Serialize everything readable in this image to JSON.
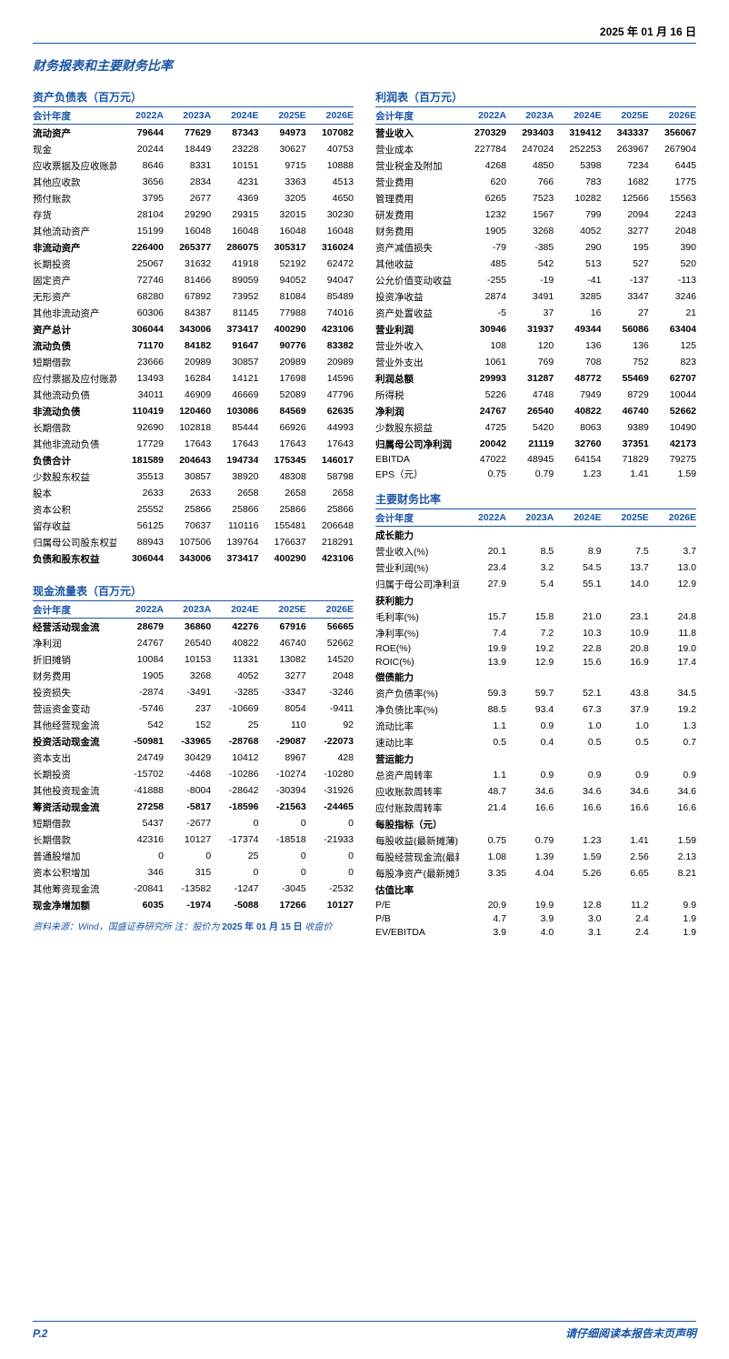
{
  "date_parts": [
    "2025",
    "年",
    "01",
    "月",
    "16",
    "日"
  ],
  "main_title": "财务报表和主要财务比率",
  "years": [
    "2022A",
    "2023A",
    "2024E",
    "2025E",
    "2026E"
  ],
  "year_label": "会计年度",
  "tables": {
    "balance": {
      "title": "资产负债表（百万元）",
      "rows": [
        {
          "b": 1,
          "l": "流动资产",
          "v": [
            "79644",
            "77629",
            "87343",
            "94973",
            "107082"
          ]
        },
        {
          "l": "现金",
          "v": [
            "20244",
            "18449",
            "23228",
            "30627",
            "40753"
          ]
        },
        {
          "l": "应收票据及应收账款",
          "v": [
            "8646",
            "8331",
            "10151",
            "9715",
            "10888"
          ]
        },
        {
          "l": "其他应收款",
          "v": [
            "3656",
            "2834",
            "4231",
            "3363",
            "4513"
          ]
        },
        {
          "l": "预付账款",
          "v": [
            "3795",
            "2677",
            "4369",
            "3205",
            "4650"
          ]
        },
        {
          "l": "存货",
          "v": [
            "28104",
            "29290",
            "29315",
            "32015",
            "30230"
          ]
        },
        {
          "l": "其他流动资产",
          "v": [
            "15199",
            "16048",
            "16048",
            "16048",
            "16048"
          ]
        },
        {
          "b": 1,
          "l": "非流动资产",
          "v": [
            "226400",
            "265377",
            "286075",
            "305317",
            "316024"
          ]
        },
        {
          "l": "长期投资",
          "v": [
            "25067",
            "31632",
            "41918",
            "52192",
            "62472"
          ]
        },
        {
          "l": "固定资产",
          "v": [
            "72746",
            "81466",
            "89059",
            "94052",
            "94047"
          ]
        },
        {
          "l": "无形资产",
          "v": [
            "68280",
            "67892",
            "73952",
            "81084",
            "85489"
          ]
        },
        {
          "l": "其他非流动资产",
          "v": [
            "60306",
            "84387",
            "81145",
            "77988",
            "74016"
          ]
        },
        {
          "b": 1,
          "l": "资产总计",
          "v": [
            "306044",
            "343006",
            "373417",
            "400290",
            "423106"
          ]
        },
        {
          "b": 1,
          "l": "流动负债",
          "v": [
            "71170",
            "84182",
            "91647",
            "90776",
            "83382"
          ]
        },
        {
          "l": "短期借款",
          "v": [
            "23666",
            "20989",
            "30857",
            "20989",
            "20989"
          ]
        },
        {
          "l": "应付票据及应付账款",
          "v": [
            "13493",
            "16284",
            "14121",
            "17698",
            "14596"
          ]
        },
        {
          "l": "其他流动负债",
          "v": [
            "34011",
            "46909",
            "46669",
            "52089",
            "47796"
          ]
        },
        {
          "b": 1,
          "l": "非流动负债",
          "v": [
            "110419",
            "120460",
            "103086",
            "84569",
            "62635"
          ]
        },
        {
          "l": "长期借款",
          "v": [
            "92690",
            "102818",
            "85444",
            "66926",
            "44993"
          ]
        },
        {
          "l": "其他非流动负债",
          "v": [
            "17729",
            "17643",
            "17643",
            "17643",
            "17643"
          ]
        },
        {
          "b": 1,
          "l": "负债合计",
          "v": [
            "181589",
            "204643",
            "194734",
            "175345",
            "146017"
          ]
        },
        {
          "l": "少数股东权益",
          "v": [
            "35513",
            "30857",
            "38920",
            "48308",
            "58798"
          ]
        },
        {
          "l": "股本",
          "v": [
            "2633",
            "2633",
            "2658",
            "2658",
            "2658"
          ]
        },
        {
          "l": "资本公积",
          "v": [
            "25552",
            "25866",
            "25866",
            "25866",
            "25866"
          ]
        },
        {
          "l": "留存收益",
          "v": [
            "56125",
            "70637",
            "110116",
            "155481",
            "206648"
          ]
        },
        {
          "l": "归属母公司股东权益",
          "v": [
            "88943",
            "107506",
            "139764",
            "176637",
            "218291"
          ]
        },
        {
          "b": 1,
          "l": "负债和股东权益",
          "v": [
            "306044",
            "343006",
            "373417",
            "400290",
            "423106"
          ]
        }
      ]
    },
    "cash": {
      "title": "现金流量表（百万元）",
      "rows": [
        {
          "b": 1,
          "l": "经营活动现金流",
          "v": [
            "28679",
            "36860",
            "42276",
            "67916",
            "56665"
          ]
        },
        {
          "l": "净利润",
          "v": [
            "24767",
            "26540",
            "40822",
            "46740",
            "52662"
          ]
        },
        {
          "l": "折旧摊销",
          "v": [
            "10084",
            "10153",
            "11331",
            "13082",
            "14520"
          ]
        },
        {
          "l": "财务费用",
          "v": [
            "1905",
            "3268",
            "4052",
            "3277",
            "2048"
          ]
        },
        {
          "l": "投资损失",
          "v": [
            "-2874",
            "-3491",
            "-3285",
            "-3347",
            "-3246"
          ]
        },
        {
          "l": "营运资金变动",
          "v": [
            "-5746",
            "237",
            "-10669",
            "8054",
            "-9411"
          ]
        },
        {
          "l": "其他经营现金流",
          "v": [
            "542",
            "152",
            "25",
            "110",
            "92"
          ]
        },
        {
          "b": 1,
          "l": "投资活动现金流",
          "v": [
            "-50981",
            "-33965",
            "-28768",
            "-29087",
            "-22073"
          ]
        },
        {
          "l": "资本支出",
          "v": [
            "24749",
            "30429",
            "10412",
            "8967",
            "428"
          ]
        },
        {
          "l": "长期投资",
          "v": [
            "-15702",
            "-4468",
            "-10286",
            "-10274",
            "-10280"
          ]
        },
        {
          "l": "其他投资现金流",
          "v": [
            "-41888",
            "-8004",
            "-28642",
            "-30394",
            "-31926"
          ]
        },
        {
          "b": 1,
          "l": "筹资活动现金流",
          "v": [
            "27258",
            "-5817",
            "-18596",
            "-21563",
            "-24465"
          ]
        },
        {
          "l": "短期借款",
          "v": [
            "5437",
            "-2677",
            "0",
            "0",
            "0"
          ]
        },
        {
          "l": "长期借款",
          "v": [
            "42316",
            "10127",
            "-17374",
            "-18518",
            "-21933"
          ]
        },
        {
          "l": "普通股增加",
          "v": [
            "0",
            "0",
            "25",
            "0",
            "0"
          ]
        },
        {
          "l": "资本公积增加",
          "v": [
            "346",
            "315",
            "0",
            "0",
            "0"
          ]
        },
        {
          "l": "其他筹资现金流",
          "v": [
            "-20841",
            "-13582",
            "-1247",
            "-3045",
            "-2532"
          ]
        },
        {
          "b": 1,
          "l": "现金净增加额",
          "v": [
            "6035",
            "-1974",
            "-5088",
            "17266",
            "10127"
          ]
        }
      ]
    },
    "income": {
      "title": "利润表（百万元）",
      "rows": [
        {
          "b": 1,
          "l": "营业收入",
          "v": [
            "270329",
            "293403",
            "319412",
            "343337",
            "356067"
          ]
        },
        {
          "l": "营业成本",
          "v": [
            "227784",
            "247024",
            "252253",
            "263967",
            "267904"
          ]
        },
        {
          "l": "营业税金及附加",
          "v": [
            "4268",
            "4850",
            "5398",
            "7234",
            "6445"
          ]
        },
        {
          "l": "营业费用",
          "v": [
            "620",
            "766",
            "783",
            "1682",
            "1775"
          ]
        },
        {
          "l": "管理费用",
          "v": [
            "6265",
            "7523",
            "10282",
            "12566",
            "15563"
          ]
        },
        {
          "l": "研发费用",
          "v": [
            "1232",
            "1567",
            "799",
            "2094",
            "2243"
          ]
        },
        {
          "l": "财务费用",
          "v": [
            "1905",
            "3268",
            "4052",
            "3277",
            "2048"
          ]
        },
        {
          "l": "资产减值损失",
          "v": [
            "-79",
            "-385",
            "290",
            "195",
            "390"
          ]
        },
        {
          "l": "其他收益",
          "v": [
            "485",
            "542",
            "513",
            "527",
            "520"
          ]
        },
        {
          "l": "公允价值变动收益",
          "v": [
            "-255",
            "-19",
            "-41",
            "-137",
            "-113"
          ]
        },
        {
          "l": "投资净收益",
          "v": [
            "2874",
            "3491",
            "3285",
            "3347",
            "3246"
          ]
        },
        {
          "l": "资产处置收益",
          "v": [
            "-5",
            "37",
            "16",
            "27",
            "21"
          ]
        },
        {
          "b": 1,
          "l": "营业利润",
          "v": [
            "30946",
            "31937",
            "49344",
            "56086",
            "63404"
          ]
        },
        {
          "l": "营业外收入",
          "v": [
            "108",
            "120",
            "136",
            "136",
            "125"
          ]
        },
        {
          "l": "营业外支出",
          "v": [
            "1061",
            "769",
            "708",
            "752",
            "823"
          ]
        },
        {
          "b": 1,
          "l": "利润总额",
          "v": [
            "29993",
            "31287",
            "48772",
            "55469",
            "62707"
          ]
        },
        {
          "l": "所得税",
          "v": [
            "5226",
            "4748",
            "7949",
            "8729",
            "10044"
          ]
        },
        {
          "b": 1,
          "l": "净利润",
          "v": [
            "24767",
            "26540",
            "40822",
            "46740",
            "52662"
          ]
        },
        {
          "l": "少数股东损益",
          "v": [
            "4725",
            "5420",
            "8063",
            "9389",
            "10490"
          ]
        },
        {
          "b": 1,
          "l": "归属母公司净利润",
          "v": [
            "20042",
            "21119",
            "32760",
            "37351",
            "42173"
          ]
        },
        {
          "l": "EBITDA",
          "v": [
            "47022",
            "48945",
            "64154",
            "71829",
            "79275"
          ]
        },
        {
          "l": "EPS（元）",
          "v": [
            "0.75",
            "0.79",
            "1.23",
            "1.41",
            "1.59"
          ]
        }
      ]
    },
    "ratios": {
      "title": "主要财务比率",
      "sections": [
        {
          "h": "成长能力",
          "rows": [
            {
              "l": "营业收入(%)",
              "v": [
                "20.1",
                "8.5",
                "8.9",
                "7.5",
                "3.7"
              ]
            },
            {
              "l": "营业利润(%)",
              "v": [
                "23.4",
                "3.2",
                "54.5",
                "13.7",
                "13.0"
              ]
            },
            {
              "l": "归属于母公司净利润(%)",
              "v": [
                "27.9",
                "5.4",
                "55.1",
                "14.0",
                "12.9"
              ]
            }
          ]
        },
        {
          "h": "获利能力",
          "rows": [
            {
              "l": "毛利率(%)",
              "v": [
                "15.7",
                "15.8",
                "21.0",
                "23.1",
                "24.8"
              ]
            },
            {
              "l": "净利率(%)",
              "v": [
                "7.4",
                "7.2",
                "10.3",
                "10.9",
                "11.8"
              ]
            },
            {
              "l": "ROE(%)",
              "v": [
                "19.9",
                "19.2",
                "22.8",
                "20.8",
                "19.0"
              ]
            },
            {
              "l": "ROIC(%)",
              "v": [
                "13.9",
                "12.9",
                "15.6",
                "16.9",
                "17.4"
              ]
            }
          ]
        },
        {
          "h": "偿债能力",
          "rows": [
            {
              "l": "资产负债率(%)",
              "v": [
                "59.3",
                "59.7",
                "52.1",
                "43.8",
                "34.5"
              ]
            },
            {
              "l": "净负债比率(%)",
              "v": [
                "88.5",
                "93.4",
                "67.3",
                "37.9",
                "19.2"
              ]
            },
            {
              "l": "流动比率",
              "v": [
                "1.1",
                "0.9",
                "1.0",
                "1.0",
                "1.3"
              ]
            },
            {
              "l": "速动比率",
              "v": [
                "0.5",
                "0.4",
                "0.5",
                "0.5",
                "0.7"
              ]
            }
          ]
        },
        {
          "h": "营运能力",
          "rows": [
            {
              "l": "总资产周转率",
              "v": [
                "1.1",
                "0.9",
                "0.9",
                "0.9",
                "0.9"
              ]
            },
            {
              "l": "应收账款周转率",
              "v": [
                "48.7",
                "34.6",
                "34.6",
                "34.6",
                "34.6"
              ]
            },
            {
              "l": "应付账款周转率",
              "v": [
                "21.4",
                "16.6",
                "16.6",
                "16.6",
                "16.6"
              ]
            }
          ]
        },
        {
          "h": "每股指标（元）",
          "rows": [
            {
              "l": "每股收益(最新摊薄)",
              "v": [
                "0.75",
                "0.79",
                "1.23",
                "1.41",
                "1.59"
              ]
            },
            {
              "l": "每股经营现金流(最新摊薄)",
              "v": [
                "1.08",
                "1.39",
                "1.59",
                "2.56",
                "2.13"
              ]
            },
            {
              "l": "每股净资产(最新摊薄)",
              "v": [
                "3.35",
                "4.04",
                "5.26",
                "6.65",
                "8.21"
              ]
            }
          ]
        },
        {
          "h": "估值比率",
          "rows": [
            {
              "l": "P/E",
              "v": [
                "20.9",
                "19.9",
                "12.8",
                "11.2",
                "9.9"
              ]
            },
            {
              "l": "P/B",
              "v": [
                "4.7",
                "3.9",
                "3.0",
                "2.4",
                "1.9"
              ]
            },
            {
              "l": "EV/EBITDA",
              "v": [
                "3.9",
                "4.0",
                "3.1",
                "2.4",
                "1.9"
              ]
            }
          ]
        }
      ]
    }
  },
  "source_prefix": "资料来源：Wind，国盛证券研究所    注：股价为",
  "source_date": "2025 年 01 月 15 日",
  "source_suffix": "收盘价",
  "page_num": "P.2",
  "foot_note": "请仔细阅读本报告末页声明"
}
